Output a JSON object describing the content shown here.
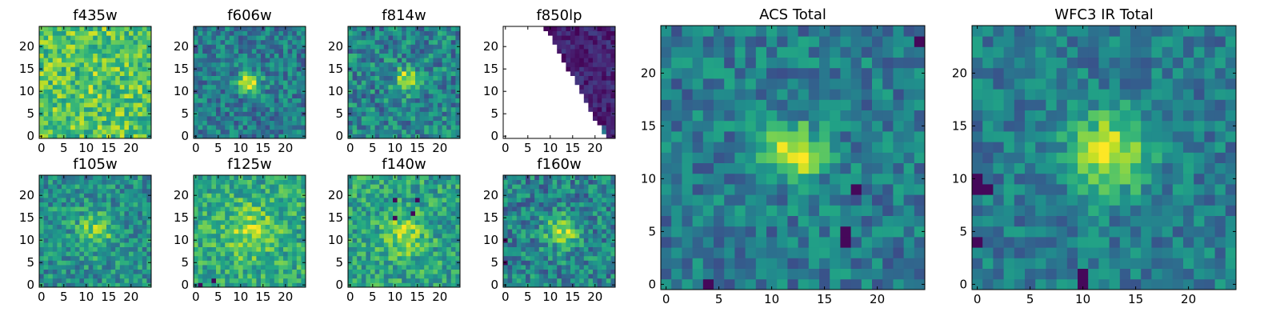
{
  "chart_data": [
    {
      "type": "heatmap",
      "title": "f435w",
      "colormap": "viridis",
      "grid_size": 25,
      "xlim": [
        0,
        24
      ],
      "ylim": [
        0,
        24
      ],
      "xticks": [
        "0",
        "5",
        "10",
        "15",
        "20"
      ],
      "yticks": [
        "0",
        "5",
        "10",
        "15",
        "20"
      ],
      "description_seed": 11,
      "peak": {
        "x": 12,
        "y": 12,
        "sigma": 2.0,
        "strength": 0.05
      },
      "base": 0.72,
      "noise": 0.22,
      "low_clusters": [],
      "masked": "none"
    },
    {
      "type": "heatmap",
      "title": "f606w",
      "colormap": "viridis",
      "grid_size": 25,
      "xlim": [
        0,
        24
      ],
      "ylim": [
        0,
        24
      ],
      "xticks": [
        "0",
        "5",
        "10",
        "15",
        "20"
      ],
      "yticks": [
        "0",
        "5",
        "10",
        "15",
        "20"
      ],
      "description_seed": 23,
      "peak": {
        "x": 12,
        "y": 12,
        "sigma": 1.6,
        "strength": 0.6
      },
      "base": 0.42,
      "noise": 0.2,
      "low_clusters": [],
      "masked": "none"
    },
    {
      "type": "heatmap",
      "title": "f814w",
      "colormap": "viridis",
      "grid_size": 25,
      "xlim": [
        0,
        24
      ],
      "ylim": [
        0,
        24
      ],
      "xticks": [
        "0",
        "5",
        "10",
        "15",
        "20"
      ],
      "yticks": [
        "0",
        "5",
        "10",
        "15",
        "20"
      ],
      "description_seed": 37,
      "peak": {
        "x": 12.5,
        "y": 12.5,
        "sigma": 1.8,
        "strength": 0.5
      },
      "base": 0.45,
      "noise": 0.22,
      "low_clusters": [],
      "masked": "none"
    },
    {
      "type": "heatmap",
      "title": "f850lp",
      "colormap": "viridis",
      "grid_size": 25,
      "xlim": [
        0,
        24
      ],
      "ylim": [
        0,
        24
      ],
      "xticks": [
        "0",
        "5",
        "10",
        "15",
        "20"
      ],
      "yticks": [
        "0",
        "5",
        "10",
        "15",
        "20"
      ],
      "description_seed": 41,
      "peak": {
        "x": 21,
        "y": 1,
        "sigma": 0.7,
        "strength": 0.9
      },
      "base": 0.1,
      "noise": 0.1,
      "low_clusters": [],
      "masked": "left-diagonal"
    },
    {
      "type": "heatmap",
      "title": "f105w",
      "colormap": "viridis",
      "grid_size": 25,
      "xlim": [
        0,
        24
      ],
      "ylim": [
        0,
        24
      ],
      "xticks": [
        "0",
        "5",
        "10",
        "15",
        "20"
      ],
      "yticks": [
        "0",
        "5",
        "10",
        "15",
        "20"
      ],
      "description_seed": 53,
      "peak": {
        "x": 12,
        "y": 12,
        "sigma": 3.0,
        "strength": 0.3
      },
      "base": 0.5,
      "noise": 0.2,
      "low_clusters": [],
      "masked": "none"
    },
    {
      "type": "heatmap",
      "title": "f125w",
      "colormap": "viridis",
      "grid_size": 25,
      "xlim": [
        0,
        24
      ],
      "ylim": [
        0,
        24
      ],
      "xticks": [
        "0",
        "5",
        "10",
        "15",
        "20"
      ],
      "yticks": [
        "0",
        "5",
        "10",
        "15",
        "20"
      ],
      "description_seed": 67,
      "peak": {
        "x": 12,
        "y": 12,
        "sigma": 4.0,
        "strength": 0.25
      },
      "base": 0.6,
      "noise": 0.2,
      "low_clusters": [
        {
          "x": 4,
          "y": 1
        },
        {
          "x": 1,
          "y": 0
        }
      ],
      "masked": "none"
    },
    {
      "type": "heatmap",
      "title": "f140w",
      "colormap": "viridis",
      "grid_size": 25,
      "xlim": [
        0,
        24
      ],
      "ylim": [
        0,
        24
      ],
      "xticks": [
        "0",
        "5",
        "10",
        "15",
        "20"
      ],
      "yticks": [
        "0",
        "5",
        "10",
        "15",
        "20"
      ],
      "description_seed": 79,
      "peak": {
        "x": 12,
        "y": 11,
        "sigma": 3.0,
        "strength": 0.3
      },
      "base": 0.58,
      "noise": 0.2,
      "low_clusters": [
        {
          "x": 10,
          "y": 19
        },
        {
          "x": 15,
          "y": 19
        },
        {
          "x": 10,
          "y": 15
        },
        {
          "x": 14,
          "y": 16
        }
      ],
      "masked": "none"
    },
    {
      "type": "heatmap",
      "title": "f160w",
      "colormap": "viridis",
      "grid_size": 25,
      "xlim": [
        0,
        24
      ],
      "ylim": [
        0,
        24
      ],
      "xticks": [
        "0",
        "5",
        "10",
        "15",
        "20"
      ],
      "yticks": [
        "0",
        "5",
        "10",
        "15",
        "20"
      ],
      "description_seed": 83,
      "peak": {
        "x": 12.5,
        "y": 12,
        "sigma": 2.4,
        "strength": 0.45
      },
      "base": 0.45,
      "noise": 0.22,
      "low_clusters": [
        {
          "x": 0,
          "y": 10
        },
        {
          "x": 0,
          "y": 5
        }
      ],
      "masked": "none"
    },
    {
      "type": "heatmap",
      "title": "ACS Total",
      "colormap": "viridis",
      "grid_size": 25,
      "xlim": [
        0,
        24
      ],
      "ylim": [
        0,
        24
      ],
      "xticks": [
        "0",
        "5",
        "10",
        "15",
        "20"
      ],
      "yticks": [
        "0",
        "5",
        "10",
        "15",
        "20"
      ],
      "description_seed": 97,
      "peak": {
        "x": 12,
        "y": 12.5,
        "sigma": 1.8,
        "strength": 0.6
      },
      "base": 0.42,
      "noise": 0.18,
      "low_clusters": [
        {
          "x": 24,
          "y": 23
        },
        {
          "x": 17,
          "y": 4
        },
        {
          "x": 17,
          "y": 5
        },
        {
          "x": 18,
          "y": 9
        },
        {
          "x": 4,
          "y": 0
        }
      ],
      "masked": "none"
    },
    {
      "type": "heatmap",
      "title": "WFC3 IR Total",
      "colormap": "viridis",
      "grid_size": 25,
      "xlim": [
        0,
        24
      ],
      "ylim": [
        0,
        24
      ],
      "xticks": [
        "0",
        "5",
        "10",
        "15",
        "20"
      ],
      "yticks": [
        "0",
        "5",
        "10",
        "15",
        "20"
      ],
      "description_seed": 101,
      "peak": {
        "x": 12.5,
        "y": 12.5,
        "sigma": 2.6,
        "strength": 0.55
      },
      "base": 0.42,
      "noise": 0.16,
      "low_clusters": [
        {
          "x": 0,
          "y": 10
        },
        {
          "x": 0,
          "y": 9
        },
        {
          "x": 1,
          "y": 9
        },
        {
          "x": 10,
          "y": 1
        },
        {
          "x": 10,
          "y": 0
        },
        {
          "x": 0,
          "y": 4
        }
      ],
      "masked": "none"
    }
  ],
  "colors": {
    "cmap_low": "#440154",
    "cmap_mid": "#21918c",
    "cmap_high": "#fde725",
    "frame": "#000000"
  }
}
